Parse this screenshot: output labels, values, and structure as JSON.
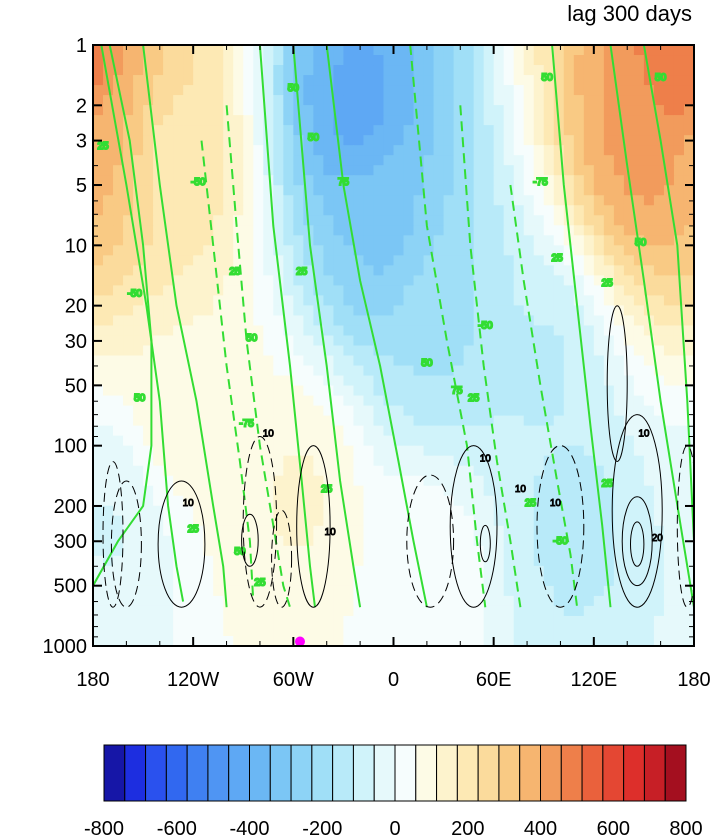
{
  "chart_data": {
    "type": "heatmap",
    "title": "lag 300 days",
    "x_ticks": [
      "180",
      "120W",
      "60W",
      "0",
      "60E",
      "120E",
      "180"
    ],
    "x_tick_values": [
      -180,
      -120,
      -60,
      0,
      60,
      120,
      180
    ],
    "y_ticks": [
      "1",
      "2",
      "3",
      "5",
      "10",
      "20",
      "30",
      "50",
      "100",
      "200",
      "300",
      "500",
      "1000"
    ],
    "y_tick_values": [
      1,
      2,
      3,
      5,
      10,
      20,
      30,
      50,
      100,
      200,
      300,
      500,
      1000
    ],
    "y_scale": "log",
    "y_reversed": true,
    "xlim": [
      -180,
      180
    ],
    "ylim": [
      1000,
      1
    ],
    "colorbar": {
      "orientation": "horizontal",
      "labels": [
        "-800",
        "-600",
        "-400",
        "-200",
        "0",
        "200",
        "400",
        "600",
        "800"
      ],
      "min": -800,
      "max": 800,
      "colors": [
        "#1616a7",
        "#1d2ee0",
        "#2a51ee",
        "#3168f0",
        "#3f80f2",
        "#4f95f3",
        "#5ea8f4",
        "#6bb7f4",
        "#7bc6f5",
        "#8dd3f6",
        "#a0dff7",
        "#b8eaf9",
        "#d0f3fa",
        "#e6f9fb",
        "#f6fdfd",
        "#fdfbe6",
        "#fdf3cd",
        "#fde9b4",
        "#fbdb9c",
        "#f9ca84",
        "#f6b570",
        "#f29b5c",
        "#ee7f4a",
        "#ea613c",
        "#e44733",
        "#dd2f2b",
        "#c71f26",
        "#a40f1f"
      ]
    },
    "filled_field_centers": [
      {
        "lon": -170,
        "p": 3,
        "value": 350
      },
      {
        "lon": -135,
        "p": 4,
        "value": 200
      },
      {
        "lon": -125,
        "p": 60,
        "value": 100
      },
      {
        "lon": -20,
        "p": 2,
        "value": -420
      },
      {
        "lon": -5,
        "p": 8,
        "value": -300
      },
      {
        "lon": 30,
        "p": 25,
        "value": -180
      },
      {
        "lon": 90,
        "p": 40,
        "value": -120
      },
      {
        "lon": 150,
        "p": 3,
        "value": 420
      },
      {
        "lon": 170,
        "p": 1.5,
        "value": 520
      },
      {
        "lon": -170,
        "p": 250,
        "value": -60
      },
      {
        "lon": -55,
        "p": 180,
        "value": 120
      },
      {
        "lon": 110,
        "p": 250,
        "value": -130
      },
      {
        "lon": 20,
        "p": 400,
        "value": 40
      }
    ],
    "contour_series": [
      {
        "color": "green",
        "levels_labeled": [
          "25",
          "50",
          "75",
          "-25",
          "-50",
          "-75"
        ]
      },
      {
        "color": "black",
        "levels_labeled": [
          "10",
          "20"
        ]
      }
    ],
    "marker": {
      "lon": -56,
      "p": 950,
      "color": "#ff00ff"
    }
  }
}
